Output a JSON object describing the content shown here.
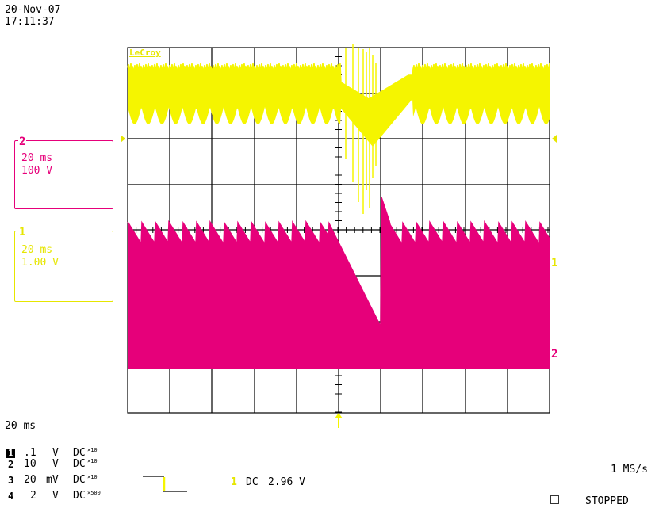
{
  "header": {
    "date": "20-Nov-07",
    "time": "17:11:37"
  },
  "scope": {
    "brand": "LeCroy",
    "colors": {
      "ch1": "#f5f500",
      "ch2": "#e6007a",
      "grid": "#000000"
    }
  },
  "channel_boxes": {
    "ch2": {
      "tag": "2",
      "timebase": "20 ms",
      "scale": "100 V"
    },
    "ch1": {
      "tag": "1",
      "timebase": "20 ms",
      "scale": "1.00 V"
    }
  },
  "markers": {
    "ch1": "1",
    "ch2": "2"
  },
  "footer": {
    "timebase": "20 ms",
    "channels": [
      {
        "num": "1",
        "scale": ".1",
        "unit": "V",
        "coupling": "DC",
        "probe": "×10"
      },
      {
        "num": "2",
        "scale": "10",
        "unit": "V",
        "coupling": "DC",
        "probe": "×10"
      },
      {
        "num": "3",
        "scale": "20",
        "unit": "mV",
        "coupling": "DC",
        "probe": "×10"
      },
      {
        "num": "4",
        "scale": "2",
        "unit": "V",
        "coupling": "DC",
        "probe": "×500"
      }
    ],
    "trigger": {
      "channel": "1",
      "coupling": "DC",
      "level": "2.96 V"
    },
    "sample_rate": "1 MS/s",
    "status": "STOPPED"
  }
}
